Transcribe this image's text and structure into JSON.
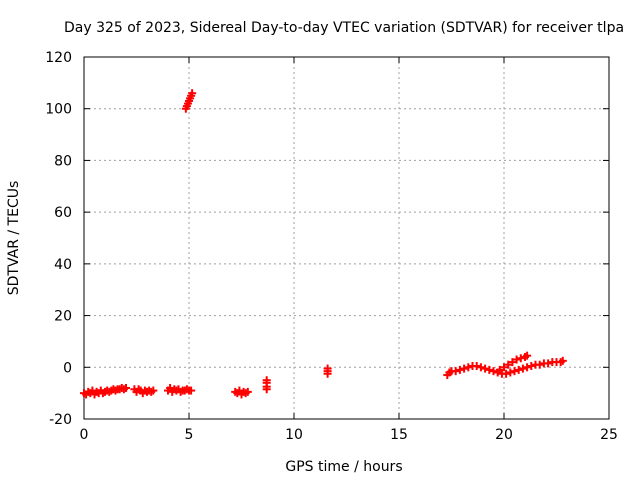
{
  "chart_data": {
    "type": "scatter",
    "title": "Day 325 of 2023, Sidereal Day-to-day VTEC variation (SDTVAR) for receiver tlpa",
    "xlabel": "GPS time / hours",
    "ylabel": "SDTVAR / TECUs",
    "xlim": [
      0,
      25
    ],
    "ylim": [
      -20,
      120
    ],
    "x_ticks": [
      0,
      5,
      10,
      15,
      20,
      25
    ],
    "y_ticks": [
      -20,
      0,
      20,
      40,
      60,
      80,
      100,
      120
    ],
    "grid": true,
    "marker_color": "#ff0000",
    "series": [
      {
        "points": [
          [
            0.0,
            -10
          ],
          [
            0.1,
            -10.5
          ],
          [
            0.2,
            -9.5
          ],
          [
            0.3,
            -10
          ],
          [
            0.4,
            -9
          ],
          [
            0.5,
            -10.5
          ],
          [
            0.6,
            -9.5
          ],
          [
            0.7,
            -10
          ],
          [
            0.8,
            -9
          ],
          [
            0.9,
            -10
          ],
          [
            1.0,
            -9.5
          ],
          [
            1.1,
            -9
          ],
          [
            1.2,
            -9.5
          ],
          [
            1.3,
            -9
          ],
          [
            1.4,
            -8.5
          ],
          [
            1.5,
            -9
          ],
          [
            1.6,
            -8.5
          ],
          [
            1.7,
            -8.5
          ],
          [
            1.8,
            -8
          ],
          [
            1.9,
            -8.5
          ],
          [
            2.0,
            -8
          ],
          [
            2.4,
            -8.5
          ],
          [
            2.5,
            -9.5
          ],
          [
            2.6,
            -8.5
          ],
          [
            2.7,
            -9
          ],
          [
            2.8,
            -10
          ],
          [
            2.9,
            -9
          ],
          [
            3.0,
            -9.5
          ],
          [
            3.1,
            -9
          ],
          [
            3.2,
            -9.5
          ],
          [
            3.3,
            -9
          ],
          [
            4.0,
            -9
          ],
          [
            4.1,
            -8
          ],
          [
            4.2,
            -9.5
          ],
          [
            4.3,
            -8.5
          ],
          [
            4.4,
            -9
          ],
          [
            4.5,
            -8.5
          ],
          [
            4.6,
            -9.5
          ],
          [
            4.7,
            -9
          ],
          [
            4.8,
            -9
          ],
          [
            4.9,
            -8.5
          ],
          [
            5.0,
            -9
          ],
          [
            5.1,
            -9
          ],
          [
            4.85,
            100
          ],
          [
            4.9,
            101
          ],
          [
            4.95,
            102
          ],
          [
            5.0,
            103
          ],
          [
            5.05,
            104
          ],
          [
            5.1,
            105
          ],
          [
            5.15,
            106
          ],
          [
            7.2,
            -9.5
          ],
          [
            7.3,
            -10
          ],
          [
            7.4,
            -9
          ],
          [
            7.5,
            -10.5
          ],
          [
            7.6,
            -9.5
          ],
          [
            7.7,
            -10
          ],
          [
            7.8,
            -9.5
          ],
          [
            8.7,
            -5
          ],
          [
            8.7,
            -6
          ],
          [
            8.7,
            -7.5
          ],
          [
            8.7,
            -8.5
          ],
          [
            11.6,
            -0.5
          ],
          [
            11.6,
            -1.5
          ],
          [
            11.6,
            -2.5
          ],
          [
            17.3,
            -3
          ],
          [
            17.4,
            -2
          ],
          [
            17.5,
            -1.5
          ],
          [
            17.7,
            -1.5
          ],
          [
            17.9,
            -1
          ],
          [
            18.1,
            -0.5
          ],
          [
            18.3,
            0
          ],
          [
            18.5,
            0.5
          ],
          [
            18.7,
            0.5
          ],
          [
            18.9,
            0
          ],
          [
            19.1,
            -0.5
          ],
          [
            19.3,
            -1
          ],
          [
            19.5,
            -1.5
          ],
          [
            19.7,
            -2
          ],
          [
            19.9,
            -2.5
          ],
          [
            20.1,
            -2.5
          ],
          [
            20.3,
            -2
          ],
          [
            20.5,
            -1.5
          ],
          [
            20.7,
            -1
          ],
          [
            20.9,
            -0.5
          ],
          [
            21.1,
            0
          ],
          [
            21.3,
            0.5
          ],
          [
            21.5,
            1
          ],
          [
            21.7,
            1
          ],
          [
            21.9,
            1.5
          ],
          [
            22.1,
            1.5
          ],
          [
            22.3,
            2
          ],
          [
            22.5,
            2
          ],
          [
            22.7,
            2
          ],
          [
            22.8,
            2.5
          ],
          [
            19.8,
            -1
          ],
          [
            20.0,
            0
          ],
          [
            20.2,
            1
          ],
          [
            20.4,
            2
          ],
          [
            20.6,
            3
          ],
          [
            20.8,
            3.5
          ],
          [
            21.0,
            4
          ],
          [
            21.1,
            4.5
          ]
        ]
      }
    ]
  }
}
